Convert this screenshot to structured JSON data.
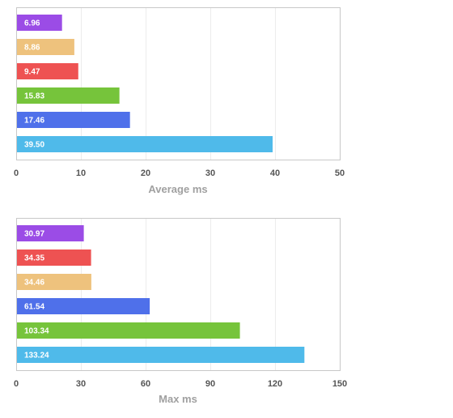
{
  "chart_data": [
    {
      "type": "bar",
      "orientation": "horizontal",
      "xlabel": "Average ms",
      "xlim": [
        0,
        50
      ],
      "xticks": [
        "0",
        "10",
        "20",
        "30",
        "40",
        "50"
      ],
      "xtick_values": [
        0,
        10,
        20,
        30,
        40,
        50
      ],
      "grid": true,
      "bars": [
        {
          "value": 6.96,
          "label": "6.96",
          "color": "#9b4ce6"
        },
        {
          "value": 8.86,
          "label": "8.86",
          "color": "#eec27d"
        },
        {
          "value": 9.47,
          "label": "9.47",
          "color": "#ee5252"
        },
        {
          "value": 15.83,
          "label": "15.83",
          "color": "#76c43b"
        },
        {
          "value": 17.46,
          "label": "17.46",
          "color": "#4f70ea"
        },
        {
          "value": 39.5,
          "label": "39.50",
          "color": "#4fbaea"
        }
      ]
    },
    {
      "type": "bar",
      "orientation": "horizontal",
      "xlabel": "Max ms",
      "xlim": [
        0,
        150
      ],
      "xticks": [
        "0",
        "30",
        "60",
        "90",
        "120",
        "150"
      ],
      "xtick_values": [
        0,
        30,
        60,
        90,
        120,
        150
      ],
      "grid": true,
      "bars": [
        {
          "value": 30.97,
          "label": "30.97",
          "color": "#9b4ce6"
        },
        {
          "value": 34.35,
          "label": "34.35",
          "color": "#ee5252"
        },
        {
          "value": 34.46,
          "label": "34.46",
          "color": "#eec27d"
        },
        {
          "value": 61.54,
          "label": "61.54",
          "color": "#4f70ea"
        },
        {
          "value": 103.34,
          "label": "103.34",
          "color": "#76c43b"
        },
        {
          "value": 133.24,
          "label": "133.24",
          "color": "#4fbaea"
        }
      ]
    }
  ]
}
